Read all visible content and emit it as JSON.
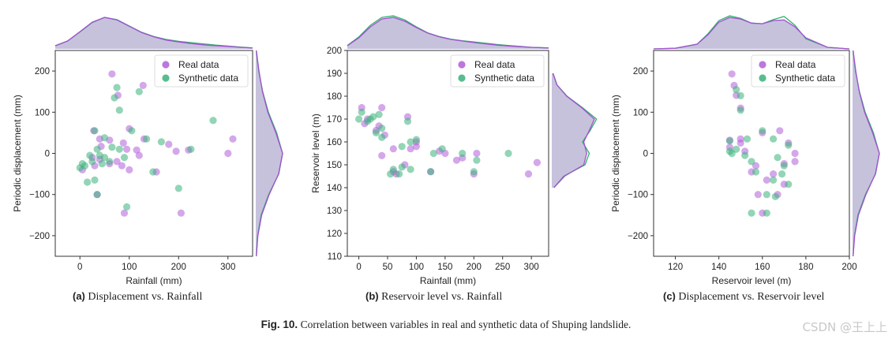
{
  "colors": {
    "real": "#b05fd8",
    "synthetic": "#3bb27a",
    "kde_fill": "#b3aed0",
    "kde_real": "#a44fd2",
    "kde_synth": "#2fb26c"
  },
  "chart_data": [
    {
      "type": "scatter",
      "title": "Displacement vs. Rainfall",
      "panel_letter": "(a)",
      "xlabel": "Rainfall (mm)",
      "ylabel": "Periodic displacement (mm)",
      "xlim": [
        -50,
        350
      ],
      "ylim": [
        -250,
        250
      ],
      "xticks": [
        0,
        100,
        200,
        300
      ],
      "yticks": [
        -200,
        -100,
        0,
        100,
        200
      ],
      "legend": {
        "position": "top-right",
        "labels": [
          "Real data",
          "Synthetic data"
        ]
      },
      "series": [
        {
          "name": "Real data",
          "points": [
            [
              65,
              193
            ],
            [
              128,
              165
            ],
            [
              77,
              141
            ],
            [
              100,
              60
            ],
            [
              40,
              35
            ],
            [
              60,
              32
            ],
            [
              88,
              25
            ],
            [
              43,
              17
            ],
            [
              95,
              10
            ],
            [
              115,
              8
            ],
            [
              180,
              22
            ],
            [
              195,
              5
            ],
            [
              220,
              8
            ],
            [
              300,
              0
            ],
            [
              310,
              35
            ],
            [
              28,
              55
            ],
            [
              5,
              -40
            ],
            [
              25,
              -10
            ],
            [
              30,
              -30
            ],
            [
              60,
              -25
            ],
            [
              75,
              -20
            ],
            [
              85,
              -30
            ],
            [
              100,
              -40
            ],
            [
              155,
              -45
            ],
            [
              90,
              -145
            ],
            [
              205,
              -145
            ],
            [
              120,
              -5
            ],
            [
              130,
              35
            ],
            [
              35,
              -100
            ],
            [
              40,
              -15
            ]
          ]
        },
        {
          "name": "Synthetic data",
          "points": [
            [
              75,
              160
            ],
            [
              120,
              150
            ],
            [
              70,
              135
            ],
            [
              105,
              55
            ],
            [
              50,
              38
            ],
            [
              65,
              15
            ],
            [
              80,
              10
            ],
            [
              35,
              10
            ],
            [
              20,
              -5
            ],
            [
              90,
              -10
            ],
            [
              148,
              -45
            ],
            [
              165,
              28
            ],
            [
              225,
              10
            ],
            [
              270,
              80
            ],
            [
              200,
              -85
            ],
            [
              95,
              -130
            ],
            [
              35,
              -100
            ],
            [
              0,
              -35
            ],
            [
              15,
              -70
            ],
            [
              30,
              -65
            ],
            [
              45,
              -25
            ],
            [
              80,
              105
            ],
            [
              10,
              -30
            ],
            [
              30,
              55
            ],
            [
              40,
              -5
            ],
            [
              60,
              -20
            ],
            [
              135,
              35
            ],
            [
              5,
              -25
            ],
            [
              25,
              -20
            ],
            [
              50,
              -10
            ]
          ]
        }
      ],
      "top_kde_x": [
        -50,
        -25,
        0,
        25,
        50,
        75,
        100,
        125,
        150,
        175,
        200,
        225,
        250,
        275,
        300,
        325,
        350
      ],
      "top_kde_real": [
        0.1,
        0.25,
        0.55,
        0.85,
        1.0,
        0.92,
        0.72,
        0.52,
        0.38,
        0.28,
        0.22,
        0.17,
        0.13,
        0.1,
        0.08,
        0.05,
        0.03
      ],
      "top_kde_synth": [
        0.1,
        0.25,
        0.54,
        0.84,
        1.0,
        0.93,
        0.73,
        0.53,
        0.39,
        0.3,
        0.24,
        0.2,
        0.16,
        0.12,
        0.09,
        0.06,
        0.03
      ],
      "right_kde_y": [
        -250,
        -200,
        -150,
        -100,
        -50,
        0,
        50,
        100,
        150,
        200,
        250
      ],
      "right_kde_real": [
        0.02,
        0.08,
        0.22,
        0.5,
        0.85,
        1.0,
        0.75,
        0.45,
        0.25,
        0.12,
        0.02
      ],
      "right_kde_synth": [
        0.02,
        0.07,
        0.2,
        0.48,
        0.86,
        1.0,
        0.78,
        0.47,
        0.26,
        0.11,
        0.02
      ]
    },
    {
      "type": "scatter",
      "title": "Reservoir level vs. Rainfall",
      "panel_letter": "(b)",
      "xlabel": "Rainfall (mm)",
      "ylabel": "Reservoir level (m)",
      "xlim": [
        -20,
        330
      ],
      "ylim": [
        110,
        200
      ],
      "xticks": [
        0,
        50,
        100,
        150,
        200,
        250,
        300
      ],
      "yticks": [
        110,
        120,
        130,
        140,
        150,
        160,
        170,
        180,
        190,
        200
      ],
      "legend": {
        "position": "top-right",
        "labels": [
          "Real data",
          "Synthetic data"
        ]
      },
      "series": [
        {
          "name": "Real data",
          "points": [
            [
              5,
              175
            ],
            [
              40,
              175
            ],
            [
              85,
              171
            ],
            [
              15,
              170
            ],
            [
              35,
              167
            ],
            [
              30,
              165
            ],
            [
              100,
              160
            ],
            [
              90,
              157
            ],
            [
              60,
              157
            ],
            [
              140,
              156
            ],
            [
              150,
              155
            ],
            [
              205,
              155
            ],
            [
              40,
              154
            ],
            [
              180,
              153
            ],
            [
              125,
              147
            ],
            [
              60,
              147
            ],
            [
              200,
              146
            ],
            [
              295,
              146
            ],
            [
              310,
              151
            ],
            [
              65,
              146
            ],
            [
              80,
              150
            ],
            [
              100,
              158
            ],
            [
              170,
              152
            ],
            [
              10,
              168
            ],
            [
              45,
              163
            ]
          ]
        },
        {
          "name": "Synthetic data",
          "points": [
            [
              5,
              173
            ],
            [
              25,
              171
            ],
            [
              35,
              172
            ],
            [
              15,
              169
            ],
            [
              0,
              170
            ],
            [
              40,
              166
            ],
            [
              40,
              162
            ],
            [
              90,
              160
            ],
            [
              75,
              158
            ],
            [
              100,
              161
            ],
            [
              145,
              157
            ],
            [
              130,
              155
            ],
            [
              180,
              155
            ],
            [
              205,
              152
            ],
            [
              260,
              155
            ],
            [
              60,
              148
            ],
            [
              75,
              149
            ],
            [
              90,
              148
            ],
            [
              55,
              146
            ],
            [
              70,
              146
            ],
            [
              125,
              147
            ],
            [
              200,
              147
            ],
            [
              20,
              170
            ],
            [
              85,
              169
            ],
            [
              30,
              164
            ]
          ]
        }
      ],
      "top_kde_x": [
        -20,
        0,
        20,
        40,
        60,
        80,
        100,
        120,
        140,
        160,
        180,
        200,
        220,
        240,
        260,
        280,
        300,
        330
      ],
      "top_kde_real": [
        0.1,
        0.35,
        0.7,
        0.95,
        1.0,
        0.88,
        0.68,
        0.5,
        0.38,
        0.3,
        0.25,
        0.2,
        0.16,
        0.12,
        0.09,
        0.07,
        0.05,
        0.03
      ],
      "top_kde_synth": [
        0.11,
        0.38,
        0.75,
        1.0,
        1.05,
        0.92,
        0.7,
        0.51,
        0.39,
        0.31,
        0.26,
        0.22,
        0.18,
        0.14,
        0.11,
        0.08,
        0.05,
        0.03
      ],
      "right_kde_y": [
        140,
        145,
        150,
        155,
        160,
        165,
        170,
        175,
        180,
        185,
        190
      ],
      "right_kde_real": [
        0.05,
        0.3,
        0.75,
        0.82,
        0.75,
        0.88,
        1.0,
        0.7,
        0.35,
        0.12,
        0.03
      ],
      "right_kde_synth": [
        0.05,
        0.28,
        0.78,
        0.88,
        0.72,
        0.9,
        1.05,
        0.72,
        0.36,
        0.12,
        0.03
      ]
    },
    {
      "type": "scatter",
      "title": "Displacement vs. Reservoir level",
      "panel_letter": "(c)",
      "xlabel": "Reservoir level (m)",
      "ylabel": "Periodic displacement (mm)",
      "xlim": [
        110,
        200
      ],
      "ylim": [
        -250,
        250
      ],
      "xticks": [
        120,
        140,
        160,
        180,
        200
      ],
      "yticks": [
        -200,
        -100,
        0,
        100,
        200
      ],
      "legend": {
        "position": "top-right",
        "labels": [
          "Real data",
          "Synthetic data"
        ]
      },
      "series": [
        {
          "name": "Real data",
          "points": [
            [
              146,
              193
            ],
            [
              147,
              165
            ],
            [
              148,
              141
            ],
            [
              150,
              110
            ],
            [
              145,
              32
            ],
            [
              150,
              25
            ],
            [
              160,
              50
            ],
            [
              168,
              55
            ],
            [
              172,
              25
            ],
            [
              175,
              0
            ],
            [
              175,
              -20
            ],
            [
              170,
              -25
            ],
            [
              165,
              -50
            ],
            [
              157,
              -30
            ],
            [
              155,
              -45
            ],
            [
              162,
              -65
            ],
            [
              158,
              -100
            ],
            [
              167,
              -100
            ],
            [
              160,
              -145
            ],
            [
              170,
              -75
            ],
            [
              150,
              35
            ],
            [
              152,
              5
            ],
            [
              145,
              15
            ]
          ]
        },
        {
          "name": "Synthetic data",
          "points": [
            [
              148,
              155
            ],
            [
              150,
              140
            ],
            [
              150,
              105
            ],
            [
              145,
              30
            ],
            [
              146,
              0
            ],
            [
              148,
              10
            ],
            [
              152,
              -5
            ],
            [
              155,
              -20
            ],
            [
              157,
              -45
            ],
            [
              160,
              55
            ],
            [
              165,
              35
            ],
            [
              167,
              -10
            ],
            [
              170,
              -30
            ],
            [
              172,
              20
            ],
            [
              169,
              -50
            ],
            [
              165,
              -65
            ],
            [
              162,
              -100
            ],
            [
              166,
              -105
            ],
            [
              155,
              -145
            ],
            [
              162,
              -145
            ],
            [
              172,
              -75
            ],
            [
              153,
              35
            ],
            [
              145,
              5
            ]
          ]
        }
      ],
      "top_kde_x": [
        110,
        120,
        130,
        135,
        140,
        145,
        150,
        155,
        160,
        165,
        170,
        175,
        180,
        190,
        200
      ],
      "top_kde_real": [
        0.0,
        0.02,
        0.15,
        0.45,
        0.85,
        1.0,
        0.95,
        0.82,
        0.8,
        0.9,
        0.92,
        0.7,
        0.35,
        0.05,
        0.0
      ],
      "top_kde_synth": [
        0.0,
        0.02,
        0.15,
        0.48,
        0.9,
        1.05,
        0.97,
        0.82,
        0.8,
        0.93,
        1.03,
        0.75,
        0.32,
        0.05,
        0.0
      ],
      "right_kde_y": [
        -250,
        -200,
        -150,
        -100,
        -50,
        0,
        50,
        100,
        150,
        200,
        250
      ],
      "right_kde_real": [
        0.02,
        0.08,
        0.22,
        0.5,
        0.85,
        1.0,
        0.75,
        0.45,
        0.25,
        0.12,
        0.02
      ],
      "right_kde_synth": [
        0.02,
        0.07,
        0.2,
        0.48,
        0.86,
        1.0,
        0.78,
        0.47,
        0.26,
        0.11,
        0.02
      ]
    }
  ],
  "captions": {
    "a": {
      "letter": "(a)",
      "text": "Displacement vs. Rainfall"
    },
    "b": {
      "letter": "(b)",
      "text": "Reservoir level vs. Rainfall"
    },
    "c": {
      "letter": "(c)",
      "text": "Displacement vs. Reservoir level"
    }
  },
  "figure_caption": {
    "label": "Fig. 10.",
    "text": "Correlation between variables in real and synthetic data of Shuping landslide."
  },
  "watermark": "CSDN @王上上"
}
